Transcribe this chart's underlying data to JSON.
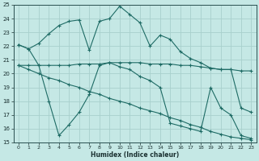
{
  "xlabel": "Humidex (Indice chaleur)",
  "bg_color": "#c5e8e5",
  "grid_color": "#a8d0cc",
  "line_color": "#1e6b65",
  "ylim": [
    15,
    25
  ],
  "xlim": [
    -0.5,
    23.5
  ],
  "yticks": [
    15,
    16,
    17,
    18,
    19,
    20,
    21,
    22,
    23,
    24,
    25
  ],
  "xticks": [
    0,
    1,
    2,
    3,
    4,
    5,
    6,
    7,
    8,
    9,
    10,
    11,
    12,
    13,
    14,
    15,
    16,
    17,
    18,
    19,
    20,
    21,
    22,
    23
  ],
  "line1_x": [
    0,
    1,
    2,
    3,
    4,
    5,
    6,
    7,
    8,
    9,
    10,
    11,
    12,
    13,
    14,
    15,
    16,
    17,
    18,
    19,
    20,
    21,
    22,
    23
  ],
  "line1_y": [
    22.1,
    21.8,
    22.2,
    22.9,
    23.5,
    23.8,
    23.9,
    21.7,
    23.8,
    24.0,
    24.9,
    24.3,
    23.7,
    22.0,
    22.8,
    22.5,
    21.6,
    21.1,
    20.8,
    20.4,
    20.3,
    20.3,
    17.5,
    17.2
  ],
  "line2_x": [
    0,
    1,
    2,
    3,
    4,
    5,
    6,
    7,
    8,
    9,
    10,
    11,
    12,
    13,
    14,
    15,
    16,
    17,
    18,
    19,
    20,
    21,
    22,
    23
  ],
  "line2_y": [
    20.6,
    20.6,
    20.6,
    20.6,
    20.6,
    20.6,
    20.7,
    20.7,
    20.7,
    20.8,
    20.8,
    20.8,
    20.8,
    20.7,
    20.7,
    20.7,
    20.6,
    20.6,
    20.5,
    20.4,
    20.3,
    20.3,
    20.2,
    20.2
  ],
  "line3_x": [
    0,
    1,
    2,
    3,
    4,
    5,
    6,
    7,
    8,
    9,
    10,
    11,
    12,
    13,
    14,
    15,
    16,
    17,
    18,
    19,
    20,
    21,
    22,
    23
  ],
  "line3_y": [
    20.6,
    20.3,
    20.0,
    19.7,
    19.5,
    19.2,
    19.0,
    18.7,
    18.5,
    18.2,
    18.0,
    17.8,
    17.5,
    17.3,
    17.1,
    16.8,
    16.6,
    16.3,
    16.1,
    15.8,
    15.6,
    15.4,
    15.3,
    15.2
  ],
  "line4_x": [
    0,
    1,
    2,
    3,
    4,
    5,
    6,
    7,
    8,
    9,
    10,
    11,
    12,
    13,
    14,
    15,
    16,
    17,
    18,
    19,
    20,
    21,
    22,
    23
  ],
  "line4_y": [
    22.1,
    21.8,
    20.6,
    18.0,
    15.5,
    16.3,
    17.2,
    18.5,
    20.6,
    20.8,
    20.5,
    20.3,
    19.8,
    19.5,
    19.0,
    16.4,
    16.2,
    16.0,
    15.8,
    19.0,
    17.5,
    17.0,
    15.5,
    15.3
  ]
}
